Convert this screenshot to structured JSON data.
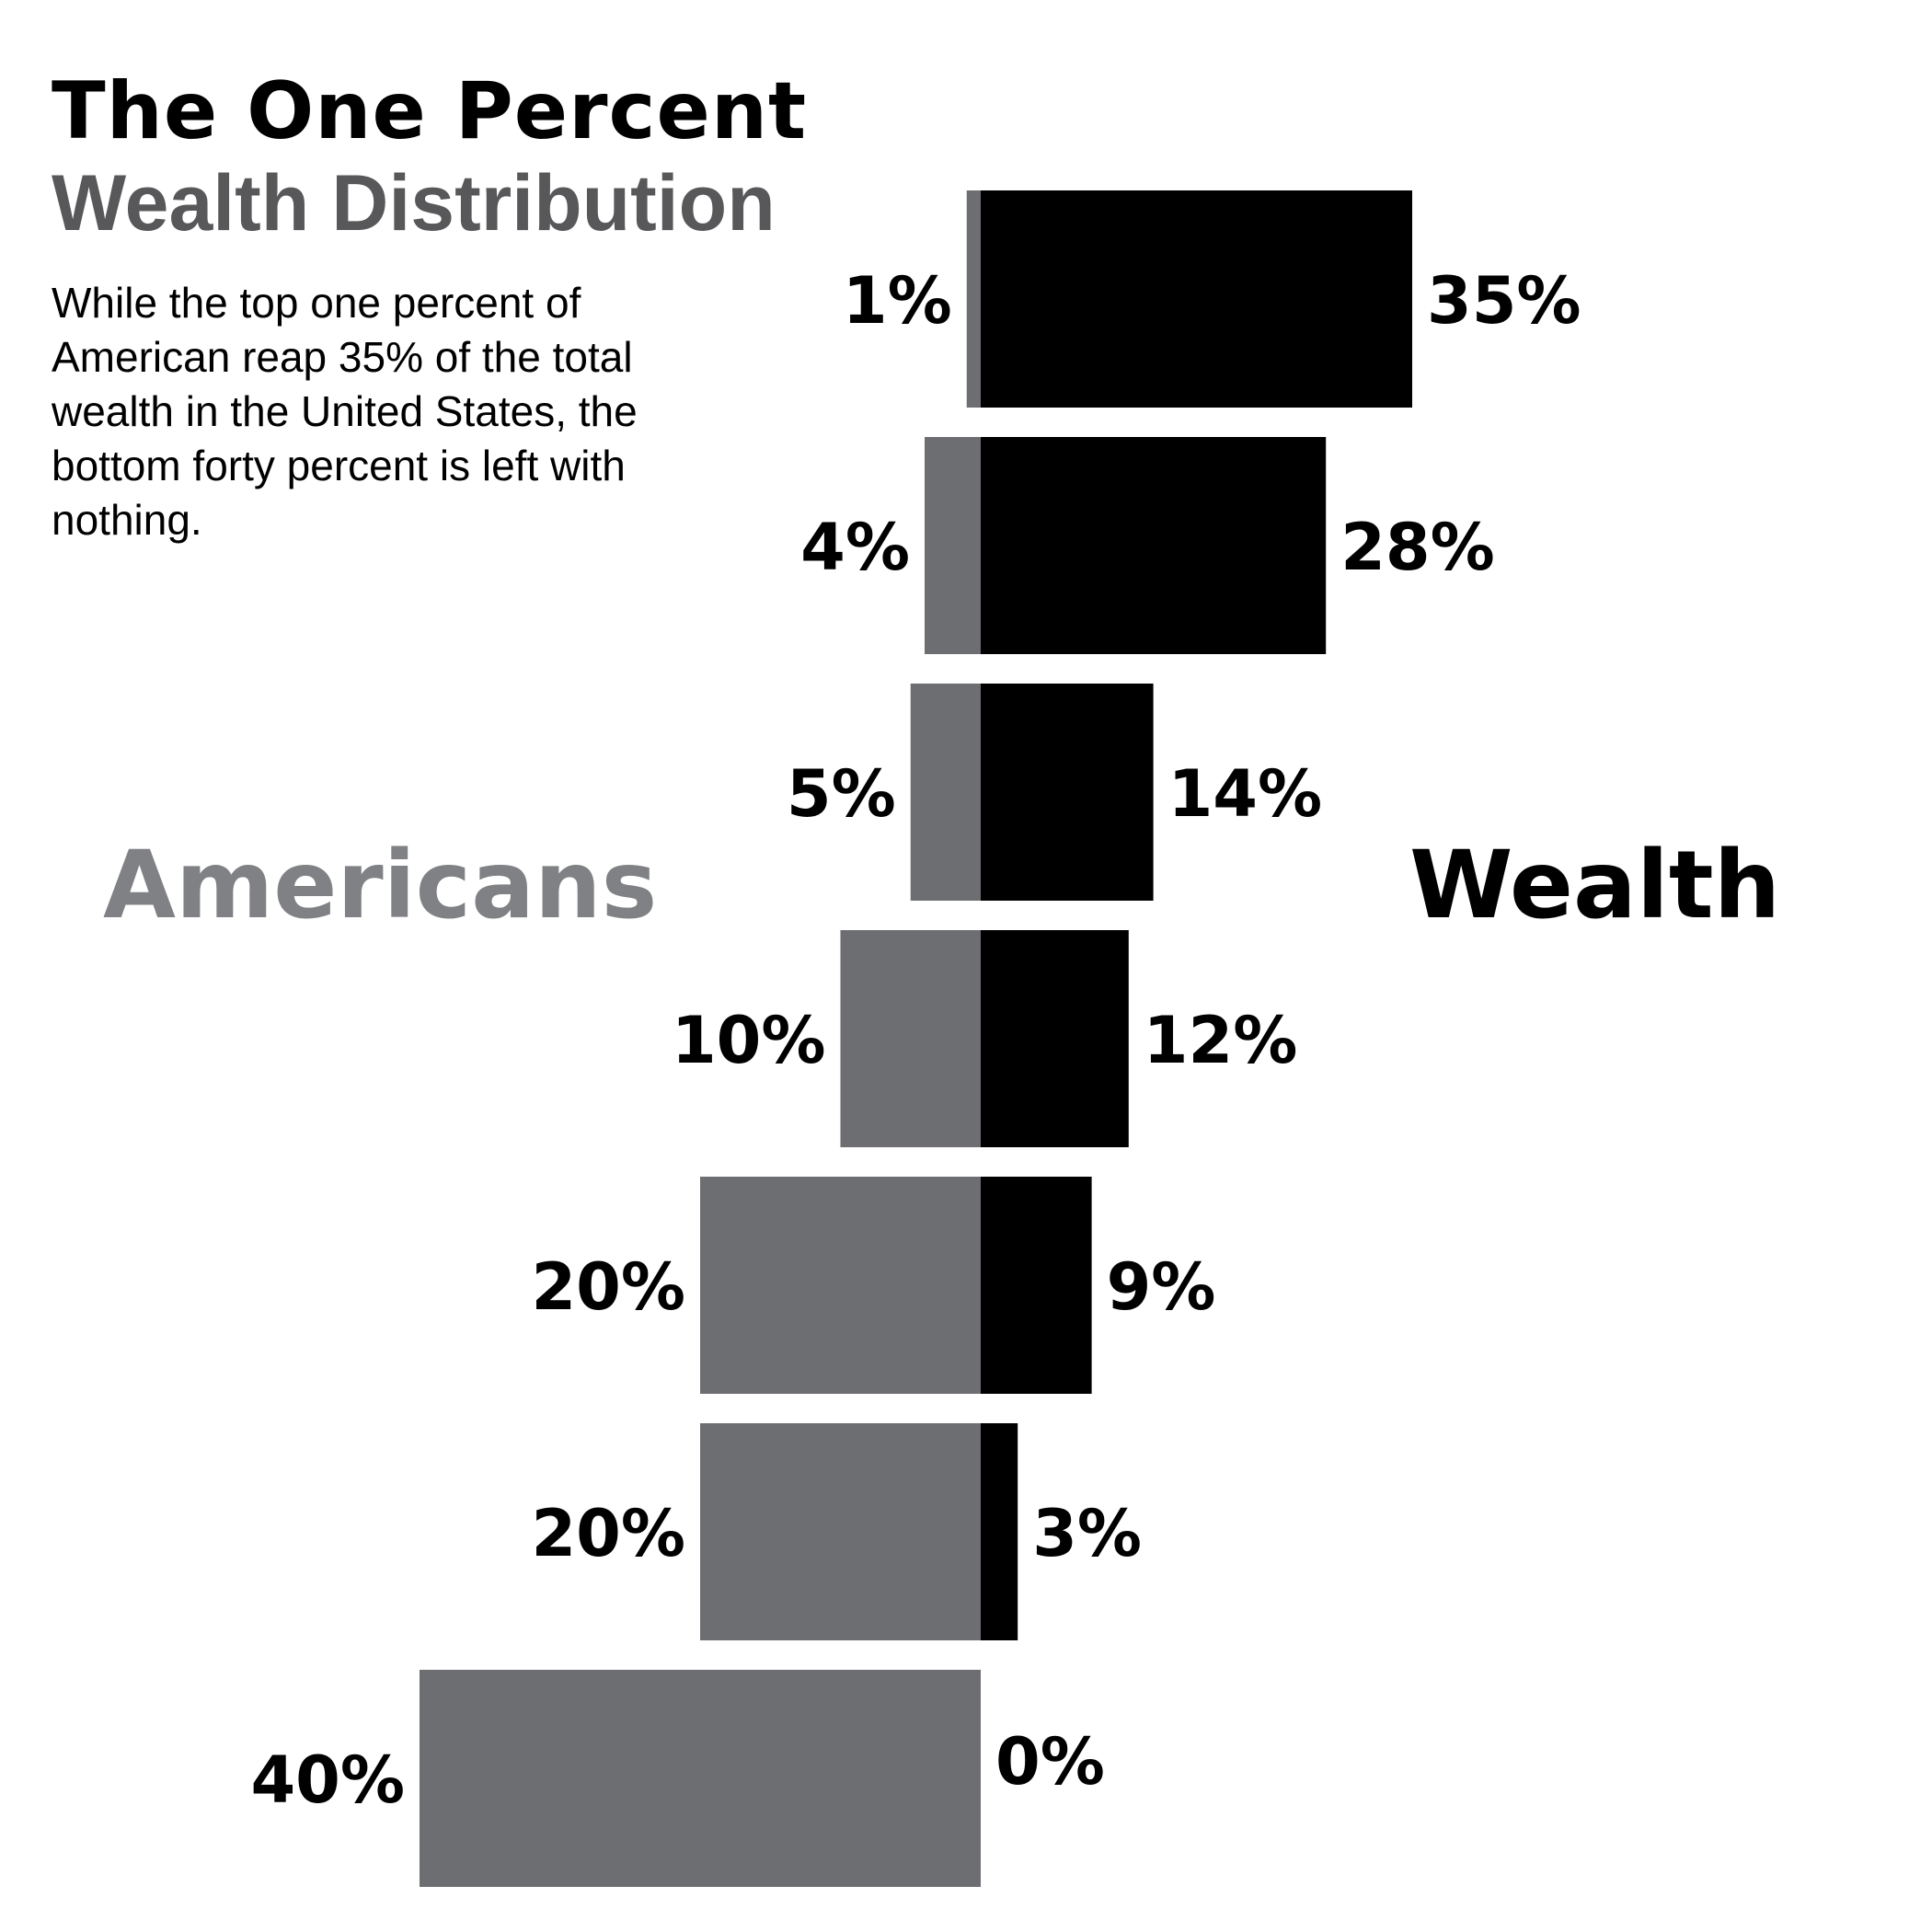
{
  "title": "The One Percent",
  "subtitle": "Wealth Distribution",
  "description": "While the top one percent of American reap 35% of the total wealth in the United States, the bottom forty percent is left with nothing.",
  "colors": {
    "population": "#6d6e71",
    "wealth": "#000000",
    "subtitle": "#58585a",
    "americans_label": "#808184"
  },
  "chart_data": {
    "type": "bar",
    "title": "The One Percent",
    "subtitle": "Wealth Distribution",
    "left_label": "Americans",
    "right_label": "Wealth",
    "series": [
      {
        "name": "Americans",
        "values": [
          1,
          4,
          5,
          10,
          20,
          20,
          40
        ],
        "labels": [
          "1%",
          "4%",
          "5%",
          "10%",
          "20%",
          "20%",
          "40%"
        ]
      },
      {
        "name": "Wealth",
        "values": [
          35,
          28,
          14,
          12,
          9,
          3,
          0
        ],
        "labels": [
          "35%",
          "28%",
          "14%",
          "12%",
          "9%",
          "3%",
          "0%"
        ]
      }
    ]
  }
}
